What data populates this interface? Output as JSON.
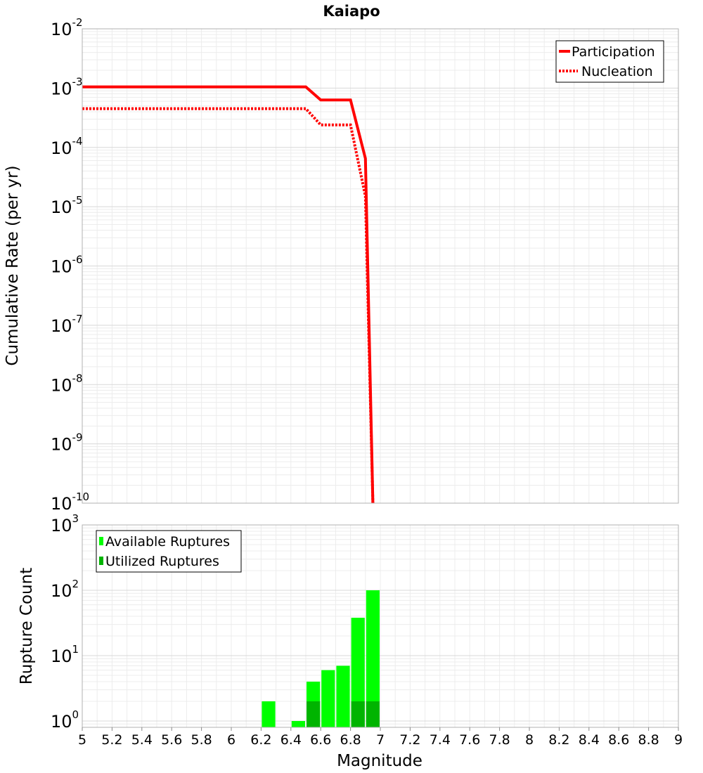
{
  "chart_data": [
    {
      "type": "line",
      "title": "Kaiapo",
      "xlabel": "",
      "ylabel": "Cumulative Rate (per yr)",
      "xlim": [
        5,
        9
      ],
      "ylim": [
        1e-10,
        0.01
      ],
      "yscale": "log",
      "grid": true,
      "legend_position": "top-right",
      "yticks": [
        {
          "base": "10",
          "exp": "-2"
        },
        {
          "base": "10",
          "exp": "-3"
        },
        {
          "base": "10",
          "exp": "-4"
        },
        {
          "base": "10",
          "exp": "-5"
        },
        {
          "base": "10",
          "exp": "-6"
        },
        {
          "base": "10",
          "exp": "-7"
        },
        {
          "base": "10",
          "exp": "-8"
        },
        {
          "base": "10",
          "exp": "-9"
        },
        {
          "base": "10",
          "exp": "-10"
        }
      ],
      "series": [
        {
          "name": "Participation",
          "color": "#ff0000",
          "style": "solid",
          "x": [
            5.0,
            6.5,
            6.6,
            6.8,
            6.9,
            6.95
          ],
          "y": [
            0.00105,
            0.00105,
            0.00063,
            0.00063,
            6.5e-05,
            1e-10
          ]
        },
        {
          "name": "Nucleation",
          "color": "#ff0000",
          "style": "dotted",
          "x": [
            5.0,
            6.5,
            6.6,
            6.8,
            6.9,
            6.95
          ],
          "y": [
            0.00045,
            0.00045,
            0.00024,
            0.00024,
            1.5e-05,
            1e-10
          ]
        }
      ]
    },
    {
      "type": "bar",
      "title": "",
      "xlabel": "Magnitude",
      "ylabel": "Rupture Count",
      "xlim": [
        5,
        9
      ],
      "ylim": [
        0.8,
        1000
      ],
      "yscale": "log",
      "grid": true,
      "legend_position": "top-left",
      "xticks": [
        "5",
        "5.2",
        "5.4",
        "5.6",
        "5.8",
        "6",
        "6.2",
        "6.4",
        "6.6",
        "6.8",
        "7",
        "7.2",
        "7.4",
        "7.6",
        "7.8",
        "8",
        "8.2",
        "8.4",
        "8.6",
        "8.8",
        "9"
      ],
      "yticks": [
        {
          "base": "10",
          "exp": "3"
        },
        {
          "base": "10",
          "exp": "2"
        },
        {
          "base": "10",
          "exp": "1"
        },
        {
          "base": "10",
          "exp": "0"
        }
      ],
      "bin_width": 0.1,
      "series": [
        {
          "name": "Available Ruptures",
          "color": "#00ff00",
          "x": [
            6.25,
            6.45,
            6.55,
            6.65,
            6.75,
            6.85,
            6.95
          ],
          "values": [
            2,
            1,
            4,
            6,
            7,
            38,
            100
          ]
        },
        {
          "name": "Utilized Ruptures",
          "color": "#00b400",
          "x": [
            6.55,
            6.85,
            6.95
          ],
          "values": [
            2,
            2,
            2
          ]
        }
      ]
    }
  ]
}
